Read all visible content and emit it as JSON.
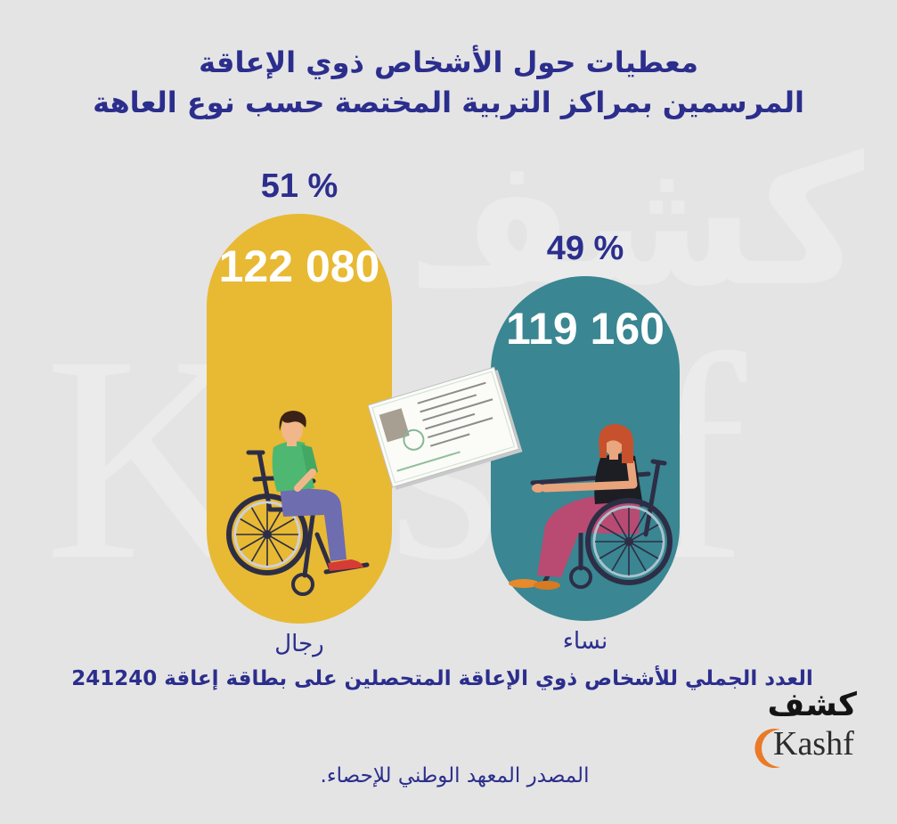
{
  "theme": {
    "background": "#e4e4e5",
    "text_color": "#2b2e8c"
  },
  "chart_data": {
    "type": "bar",
    "title": [
      "معطيات حول الأشخاص ذوي الإعاقة",
      "المرسمين بمراكز التربية المختصة حسب نوع العاهة"
    ],
    "categories": [
      "رجال",
      "نساء"
    ],
    "values": [
      122080,
      119160
    ],
    "value_labels": [
      "122 080",
      "119 160"
    ],
    "percent_labels": [
      "51 %",
      "49 %"
    ],
    "colors": [
      "#e8b933",
      "#3a8692"
    ],
    "grid": false
  },
  "summary": {
    "label": "العدد الجملي للأشخاص ذوي الإعاقة المتحصلين على بطاقة إعاقة",
    "total": "241240"
  },
  "source": "المصدر المعهد الوطني للإحصاء.",
  "logo": {
    "arabic": "كشف",
    "latin": "Kashf",
    "accent_color": "#ea7a26"
  },
  "watermark": {
    "latin": "Kashf",
    "arabic": "كشف"
  },
  "illustrations": {
    "men": "man-wheelchair-icon",
    "women": "woman-wheelchair-icon",
    "card": "disability-card-icon"
  }
}
